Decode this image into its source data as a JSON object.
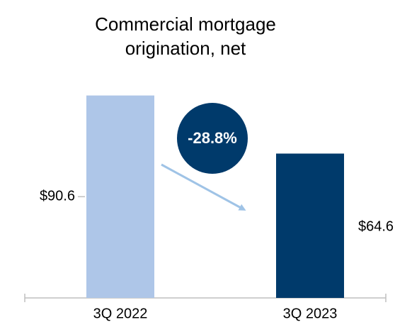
{
  "chart_data": {
    "type": "bar",
    "title": [
      "Commercial mortgage",
      "origination, net"
    ],
    "categories": [
      "3Q 2022",
      "3Q 2023"
    ],
    "series": [
      {
        "name": null,
        "colors": [
          "#aec6e8",
          "#003a6b"
        ],
        "values": [
          90.6,
          64.6
        ],
        "value_labels": [
          "$90.6",
          "$64.6"
        ]
      }
    ],
    "annotation": "-28.8%",
    "ylim": [
      0,
      100
    ]
  }
}
